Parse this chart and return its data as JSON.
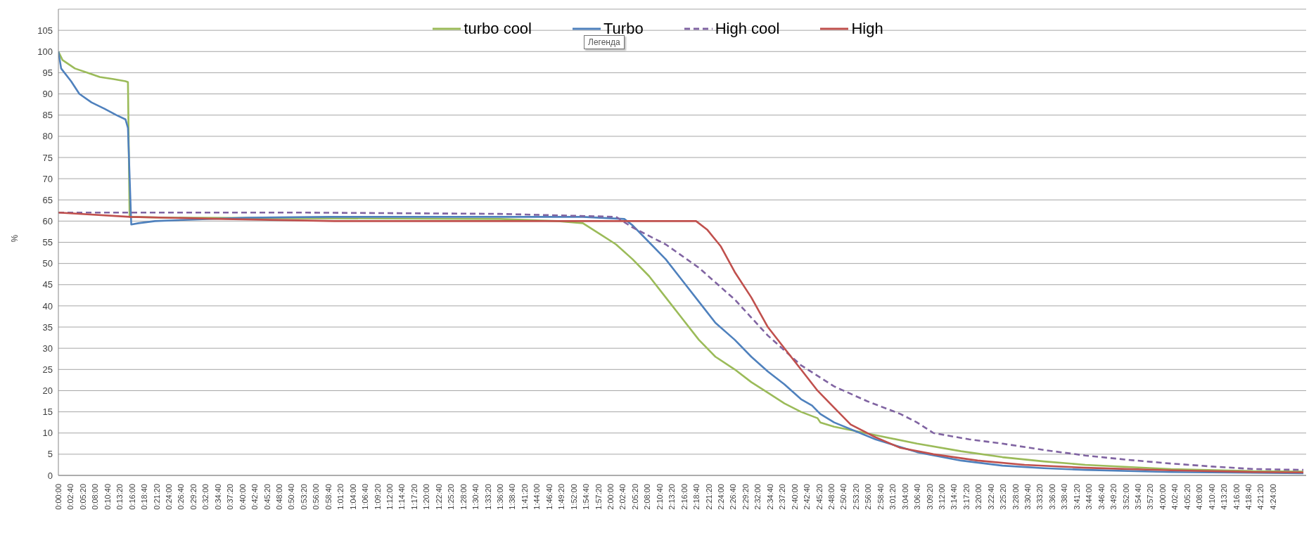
{
  "chart_data": {
    "type": "line",
    "ylabel": "%",
    "legend": "top",
    "grid": "y",
    "marker": "none",
    "annotations": [
      "Легенда"
    ],
    "xlim": [
      0,
      4.52
    ],
    "ylim": [
      0,
      110
    ],
    "yticks": [
      0,
      5,
      10,
      15,
      20,
      25,
      30,
      35,
      40,
      45,
      50,
      55,
      60,
      65,
      70,
      75,
      80,
      85,
      90,
      95,
      100,
      105
    ],
    "xticks": [
      {
        "value": 0,
        "label": "0:00:00"
      },
      {
        "value": 0.0444,
        "label": "0:02:40"
      },
      {
        "value": 0.0889,
        "label": "0:05:20"
      },
      {
        "value": 0.1333,
        "label": "0:08:00"
      },
      {
        "value": 0.1778,
        "label": "0:10:40"
      },
      {
        "value": 0.2222,
        "label": "0:13:20"
      },
      {
        "value": 0.2667,
        "label": "0:16:00"
      },
      {
        "value": 0.3111,
        "label": "0:18:40"
      },
      {
        "value": 0.3556,
        "label": "0:21:20"
      },
      {
        "value": 0.4,
        "label": "0:24:00"
      },
      {
        "value": 0.4444,
        "label": "0:26:40"
      },
      {
        "value": 0.4889,
        "label": "0:29:20"
      },
      {
        "value": 0.5333,
        "label": "0:32:00"
      },
      {
        "value": 0.5778,
        "label": "0:34:40"
      },
      {
        "value": 0.6222,
        "label": "0:37:20"
      },
      {
        "value": 0.6667,
        "label": "0:40:00"
      },
      {
        "value": 0.7111,
        "label": "0:42:40"
      },
      {
        "value": 0.7556,
        "label": "0:45:20"
      },
      {
        "value": 0.8,
        "label": "0:48:00"
      },
      {
        "value": 0.8444,
        "label": "0:50:40"
      },
      {
        "value": 0.8889,
        "label": "0:53:20"
      },
      {
        "value": 0.9333,
        "label": "0:56:00"
      },
      {
        "value": 0.9778,
        "label": "0:58:40"
      },
      {
        "value": 1.0222,
        "label": "1:01:20"
      },
      {
        "value": 1.0667,
        "label": "1:04:00"
      },
      {
        "value": 1.1111,
        "label": "1:06:40"
      },
      {
        "value": 1.1556,
        "label": "1:09:20"
      },
      {
        "value": 1.2,
        "label": "1:12:00"
      },
      {
        "value": 1.2444,
        "label": "1:14:40"
      },
      {
        "value": 1.2889,
        "label": "1:17:20"
      },
      {
        "value": 1.3333,
        "label": "1:20:00"
      },
      {
        "value": 1.3778,
        "label": "1:22:40"
      },
      {
        "value": 1.4222,
        "label": "1:25:20"
      },
      {
        "value": 1.4667,
        "label": "1:28:00"
      },
      {
        "value": 1.5111,
        "label": "1:30:40"
      },
      {
        "value": 1.5556,
        "label": "1:33:20"
      },
      {
        "value": 1.6,
        "label": "1:36:00"
      },
      {
        "value": 1.6444,
        "label": "1:38:40"
      },
      {
        "value": 1.6889,
        "label": "1:41:20"
      },
      {
        "value": 1.7333,
        "label": "1:44:00"
      },
      {
        "value": 1.7778,
        "label": "1:46:40"
      },
      {
        "value": 1.8222,
        "label": "1:49:20"
      },
      {
        "value": 1.8667,
        "label": "1:52:00"
      },
      {
        "value": 1.9111,
        "label": "1:54:40"
      },
      {
        "value": 1.9556,
        "label": "1:57:20"
      },
      {
        "value": 2,
        "label": "2:00:00"
      },
      {
        "value": 2.0444,
        "label": "2:02:40"
      },
      {
        "value": 2.0889,
        "label": "2:05:20"
      },
      {
        "value": 2.1333,
        "label": "2:08:00"
      },
      {
        "value": 2.1778,
        "label": "2:10:40"
      },
      {
        "value": 2.2222,
        "label": "2:13:20"
      },
      {
        "value": 2.2667,
        "label": "2:16:00"
      },
      {
        "value": 2.3111,
        "label": "2:18:40"
      },
      {
        "value": 2.3556,
        "label": "2:21:20"
      },
      {
        "value": 2.4,
        "label": "2:24:00"
      },
      {
        "value": 2.4444,
        "label": "2:26:40"
      },
      {
        "value": 2.4889,
        "label": "2:29:20"
      },
      {
        "value": 2.5333,
        "label": "2:32:00"
      },
      {
        "value": 2.5778,
        "label": "2:34:40"
      },
      {
        "value": 2.6222,
        "label": "2:37:20"
      },
      {
        "value": 2.6667,
        "label": "2:40:00"
      },
      {
        "value": 2.7111,
        "label": "2:42:40"
      },
      {
        "value": 2.7556,
        "label": "2:45:20"
      },
      {
        "value": 2.8,
        "label": "2:48:00"
      },
      {
        "value": 2.8444,
        "label": "2:50:40"
      },
      {
        "value": 2.8889,
        "label": "2:53:20"
      },
      {
        "value": 2.9333,
        "label": "2:56:00"
      },
      {
        "value": 2.9778,
        "label": "2:58:40"
      },
      {
        "value": 3.0222,
        "label": "3:01:20"
      },
      {
        "value": 3.0667,
        "label": "3:04:00"
      },
      {
        "value": 3.1111,
        "label": "3:06:40"
      },
      {
        "value": 3.1556,
        "label": "3:09:20"
      },
      {
        "value": 3.2,
        "label": "3:12:00"
      },
      {
        "value": 3.2444,
        "label": "3:14:40"
      },
      {
        "value": 3.2889,
        "label": "3:17:20"
      },
      {
        "value": 3.3333,
        "label": "3:20:00"
      },
      {
        "value": 3.3778,
        "label": "3:22:40"
      },
      {
        "value": 3.4222,
        "label": "3:25:20"
      },
      {
        "value": 3.4667,
        "label": "3:28:00"
      },
      {
        "value": 3.5111,
        "label": "3:30:40"
      },
      {
        "value": 3.5556,
        "label": "3:33:20"
      },
      {
        "value": 3.6,
        "label": "3:36:00"
      },
      {
        "value": 3.6444,
        "label": "3:38:40"
      },
      {
        "value": 3.6889,
        "label": "3:41:20"
      },
      {
        "value": 3.7333,
        "label": "3:44:00"
      },
      {
        "value": 3.7778,
        "label": "3:46:40"
      },
      {
        "value": 3.8222,
        "label": "3:49:20"
      },
      {
        "value": 3.8667,
        "label": "3:52:00"
      },
      {
        "value": 3.9111,
        "label": "3:54:40"
      },
      {
        "value": 3.9556,
        "label": "3:57:20"
      },
      {
        "value": 4,
        "label": "4:00:00"
      },
      {
        "value": 4.0444,
        "label": "4:02:40"
      },
      {
        "value": 4.0889,
        "label": "4:05:20"
      },
      {
        "value": 4.1333,
        "label": "4:08:00"
      },
      {
        "value": 4.1778,
        "label": "4:10:40"
      },
      {
        "value": 4.2222,
        "label": "4:13:20"
      },
      {
        "value": 4.2667,
        "label": "4:16:00"
      },
      {
        "value": 4.3111,
        "label": "4:18:40"
      },
      {
        "value": 4.3556,
        "label": "4:21:20"
      },
      {
        "value": 4.4,
        "label": "4:24:00"
      }
    ],
    "series": [
      {
        "name": "turbo cool",
        "color": "#9bbb59",
        "x": [
          0,
          0.015,
          0.06,
          0.106,
          0.15,
          0.2,
          0.243,
          0.252,
          0.258,
          0.4,
          0.8,
          1.2,
          1.6,
          1.81,
          1.9,
          1.96,
          2.02,
          2.08,
          2.14,
          2.2,
          2.26,
          2.32,
          2.38,
          2.45,
          2.51,
          2.57,
          2.63,
          2.69,
          2.75,
          2.76,
          2.81,
          2.96,
          3.11,
          3.27,
          3.42,
          3.57,
          3.72,
          4.03,
          4.33,
          4.51
        ],
        "values": [
          100,
          98,
          96,
          95,
          94,
          93.5,
          93,
          92.8,
          61,
          60.8,
          60.7,
          60.6,
          60.5,
          60,
          59.5,
          57,
          54.5,
          51,
          47,
          42,
          37,
          32,
          28,
          25,
          22,
          19.5,
          17,
          15,
          13.5,
          12.5,
          11.5,
          9.5,
          7.5,
          5.7,
          4.3,
          3.3,
          2.5,
          1.5,
          1,
          0.9
        ]
      },
      {
        "name": "Turbo",
        "color": "#4f81bd",
        "x": [
          0,
          0.01,
          0.046,
          0.076,
          0.12,
          0.167,
          0.21,
          0.243,
          0.252,
          0.264,
          0.29,
          0.35,
          0.47,
          0.68,
          0.98,
          1.5,
          1.9,
          2.05,
          2.08,
          2.14,
          2.2,
          2.26,
          2.32,
          2.38,
          2.45,
          2.51,
          2.57,
          2.63,
          2.69,
          2.73,
          2.76,
          2.81,
          2.96,
          3.11,
          3.27,
          3.42,
          3.57,
          3.72,
          4.03,
          4.51
        ],
        "values": [
          100,
          96,
          93,
          90,
          88,
          86.5,
          85,
          84,
          82,
          59.2,
          59.5,
          60,
          60.3,
          60.8,
          61,
          61,
          61,
          60.5,
          59,
          55,
          51,
          46,
          41,
          36,
          32,
          28,
          24.5,
          21.5,
          18,
          16.5,
          14.5,
          12.5,
          8.5,
          5.5,
          3.5,
          2.3,
          1.7,
          1.3,
          0.8,
          0.5
        ]
      },
      {
        "name": "High cool",
        "color": "#8064a2",
        "line_style": "dashed",
        "x": [
          0,
          0.9,
          1.6,
          2.02,
          2.08,
          2.2,
          2.32,
          2.45,
          2.57,
          2.69,
          2.81,
          2.93,
          3.05,
          3.11,
          3.17,
          3.3,
          3.42,
          3.57,
          3.72,
          3.87,
          4.03,
          4.18,
          4.33,
          4.51
        ],
        "values": [
          62,
          62,
          61.7,
          61,
          58.5,
          54.5,
          49,
          41.5,
          33,
          26,
          21,
          17.5,
          14.5,
          12.5,
          10,
          8.5,
          7.5,
          6,
          4.7,
          3.7,
          2.8,
          2.1,
          1.5,
          1.3
        ]
      },
      {
        "name": "High",
        "color": "#c0504d",
        "x": [
          0,
          0.26,
          0.6,
          1,
          1.6,
          2.31,
          2.35,
          2.4,
          2.45,
          2.51,
          2.57,
          2.63,
          2.69,
          2.75,
          2.81,
          2.87,
          2.96,
          3.05,
          3.17,
          3.33,
          3.5,
          3.72,
          4.03,
          4.33,
          4.51
        ],
        "values": [
          62,
          61,
          60.5,
          60,
          60,
          60,
          58,
          54,
          48,
          42,
          35,
          30,
          25,
          20,
          16,
          12,
          9,
          6.5,
          5,
          3.5,
          2.5,
          1.8,
          1.2,
          0.8,
          0.7
        ]
      }
    ]
  }
}
